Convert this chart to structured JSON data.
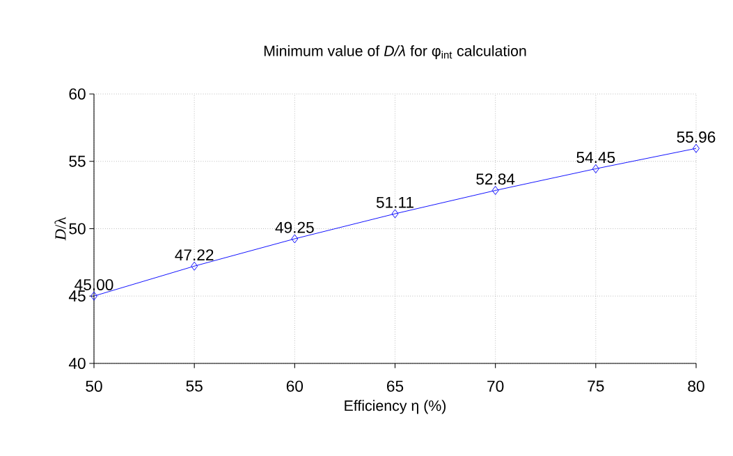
{
  "chart_data": {
    "type": "line",
    "title": "Minimum value of *D/λ* for φ$_{int}$ calculation",
    "xlabel": "Efficiency η (%)",
    "ylabel": "*D*/λ",
    "x": [
      50,
      55,
      60,
      65,
      70,
      75,
      80
    ],
    "series": [
      {
        "color": "#0000ff",
        "values": [
          45.0,
          47.22,
          49.25,
          51.11,
          52.84,
          54.45,
          55.96
        ],
        "value_labels": [
          "45.00",
          "47.22",
          "49.25",
          "51.11",
          "52.84",
          "54.45",
          "55.96"
        ]
      }
    ],
    "xlim": [
      50,
      80
    ],
    "xticks": [
      50,
      55,
      60,
      65,
      70,
      75,
      80
    ],
    "ylim": [
      40,
      60
    ],
    "yticks": [
      40,
      45,
      50,
      55,
      60
    ],
    "grid": true,
    "marker": "diamond",
    "line_style": "solid"
  }
}
